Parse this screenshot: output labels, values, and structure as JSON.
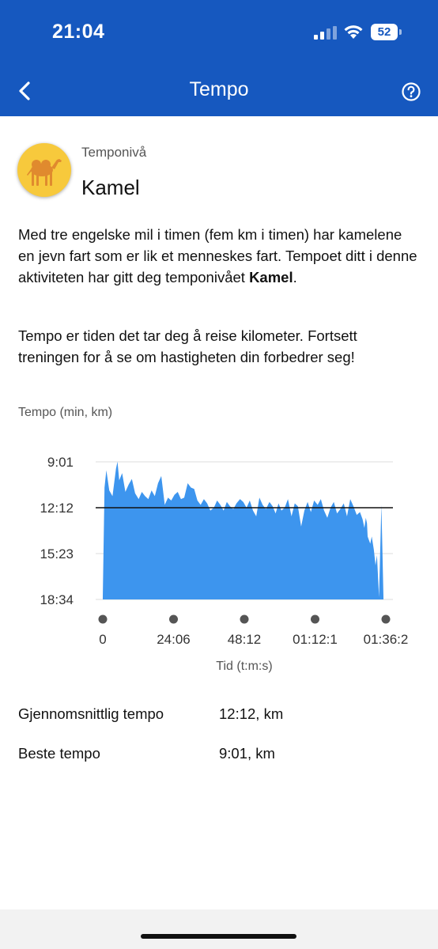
{
  "status_bar": {
    "time": "21:04",
    "battery": "52"
  },
  "nav": {
    "title": "Tempo",
    "back_icon": "chevron-left-icon",
    "help_icon": "help-circle-icon"
  },
  "header": {
    "caption": "Temponivå",
    "level": "Kamel",
    "avatar_icon": "camel-icon"
  },
  "description": {
    "p1_prefix": "Med tre engelske mil i timen (fem km i timen) har kamelene en jevn fart som er lik et menneskes fart. Tempoet ditt i denne aktiviteten har gitt deg temponivået ",
    "p1_bold": "Kamel",
    "p1_suffix": ".",
    "p2": "Tempo er tiden det tar deg å reise kilometer. Fortsett treningen for å se om hastigheten din forbedrer seg!"
  },
  "chart_label": "Tempo (min, km)",
  "chart_data": {
    "type": "area",
    "xlabel": "Tid (t:m:s)",
    "ylabel": "Tempo (min, km)",
    "x_ticks": [
      "0",
      "24:06",
      "48:12",
      "01:12:1",
      "01:36:2"
    ],
    "y_ticks": [
      "9:01",
      "12:12",
      "15:23",
      "18:34"
    ],
    "y_tick_minutes": [
      9.0167,
      12.2,
      15.3833,
      18.5667
    ],
    "x_minutes_range": [
      0,
      96.3
    ],
    "average_line": 12.2,
    "y_inverted": true,
    "color": "#3d95ee",
    "series": [
      {
        "x": [
          0,
          0.6,
          1.2,
          2.2,
          3.3,
          4.5,
          5.0,
          5.6,
          6.6,
          7.7,
          8.8,
          9.9,
          11.0,
          12.2,
          13.3,
          14.4,
          15.5,
          16.6,
          17.7,
          18.8,
          19.9,
          21.1,
          22.2,
          23.3,
          24.4,
          25.5,
          26.6,
          27.7,
          28.9,
          30.0,
          31.1,
          32.2,
          33.3,
          34.4,
          35.5,
          36.6,
          37.8,
          38.9,
          40.0,
          41.1,
          42.2,
          43.3,
          44.4,
          45.5,
          46.7,
          47.8,
          48.9,
          50.0,
          51.1,
          52.2,
          53.3,
          54.4,
          55.5,
          56.7,
          57.8,
          58.8,
          59.8,
          60.8,
          61.9,
          63.0,
          64.2,
          65.3,
          66.4,
          67.5,
          68.6,
          69.7,
          70.8,
          71.9,
          73.1,
          74.2,
          75.3,
          76.4,
          77.5,
          78.6,
          79.7,
          80.8,
          82.0,
          83.1,
          84.2,
          85.3,
          86.4,
          87.5,
          88.4,
          89.0,
          89.5,
          89.9,
          90.1,
          91.0,
          91.5,
          92.2,
          92.8,
          93.3,
          94.0,
          94.8,
          95.5
        ],
        "values": [
          18.4,
          10.8,
          9.6,
          11.0,
          11.4,
          9.5,
          9.0,
          10.3,
          9.8,
          11.1,
          10.6,
          10.2,
          11.2,
          11.6,
          11.1,
          11.4,
          11.6,
          11.0,
          11.4,
          10.5,
          10.0,
          12.0,
          11.5,
          11.7,
          11.3,
          11.1,
          11.6,
          11.5,
          10.5,
          10.8,
          10.9,
          11.7,
          12.0,
          11.6,
          11.9,
          12.4,
          12.2,
          11.7,
          12.0,
          12.4,
          11.8,
          12.1,
          12.3,
          11.9,
          11.6,
          11.8,
          12.2,
          11.7,
          12.4,
          12.8,
          11.5,
          12.0,
          12.3,
          11.8,
          12.1,
          12.6,
          11.9,
          12.4,
          12.2,
          11.6,
          12.8,
          11.9,
          12.1,
          13.5,
          12.4,
          11.8,
          12.5,
          11.7,
          12.0,
          11.6,
          12.4,
          12.9,
          12.2,
          11.8,
          12.6,
          12.3,
          11.9,
          12.8,
          11.6,
          12.1,
          12.7,
          12.5,
          13.0,
          13.6,
          12.9,
          13.3,
          14.2,
          14.7,
          14.2,
          15.1,
          16.2,
          15.5,
          18.4,
          12.0,
          18.4
        ]
      }
    ]
  },
  "stats": {
    "avg_label": "Gjennomsnittlig tempo",
    "avg_value": "12:12, km",
    "best_label": "Beste tempo",
    "best_value": "9:01, km"
  }
}
